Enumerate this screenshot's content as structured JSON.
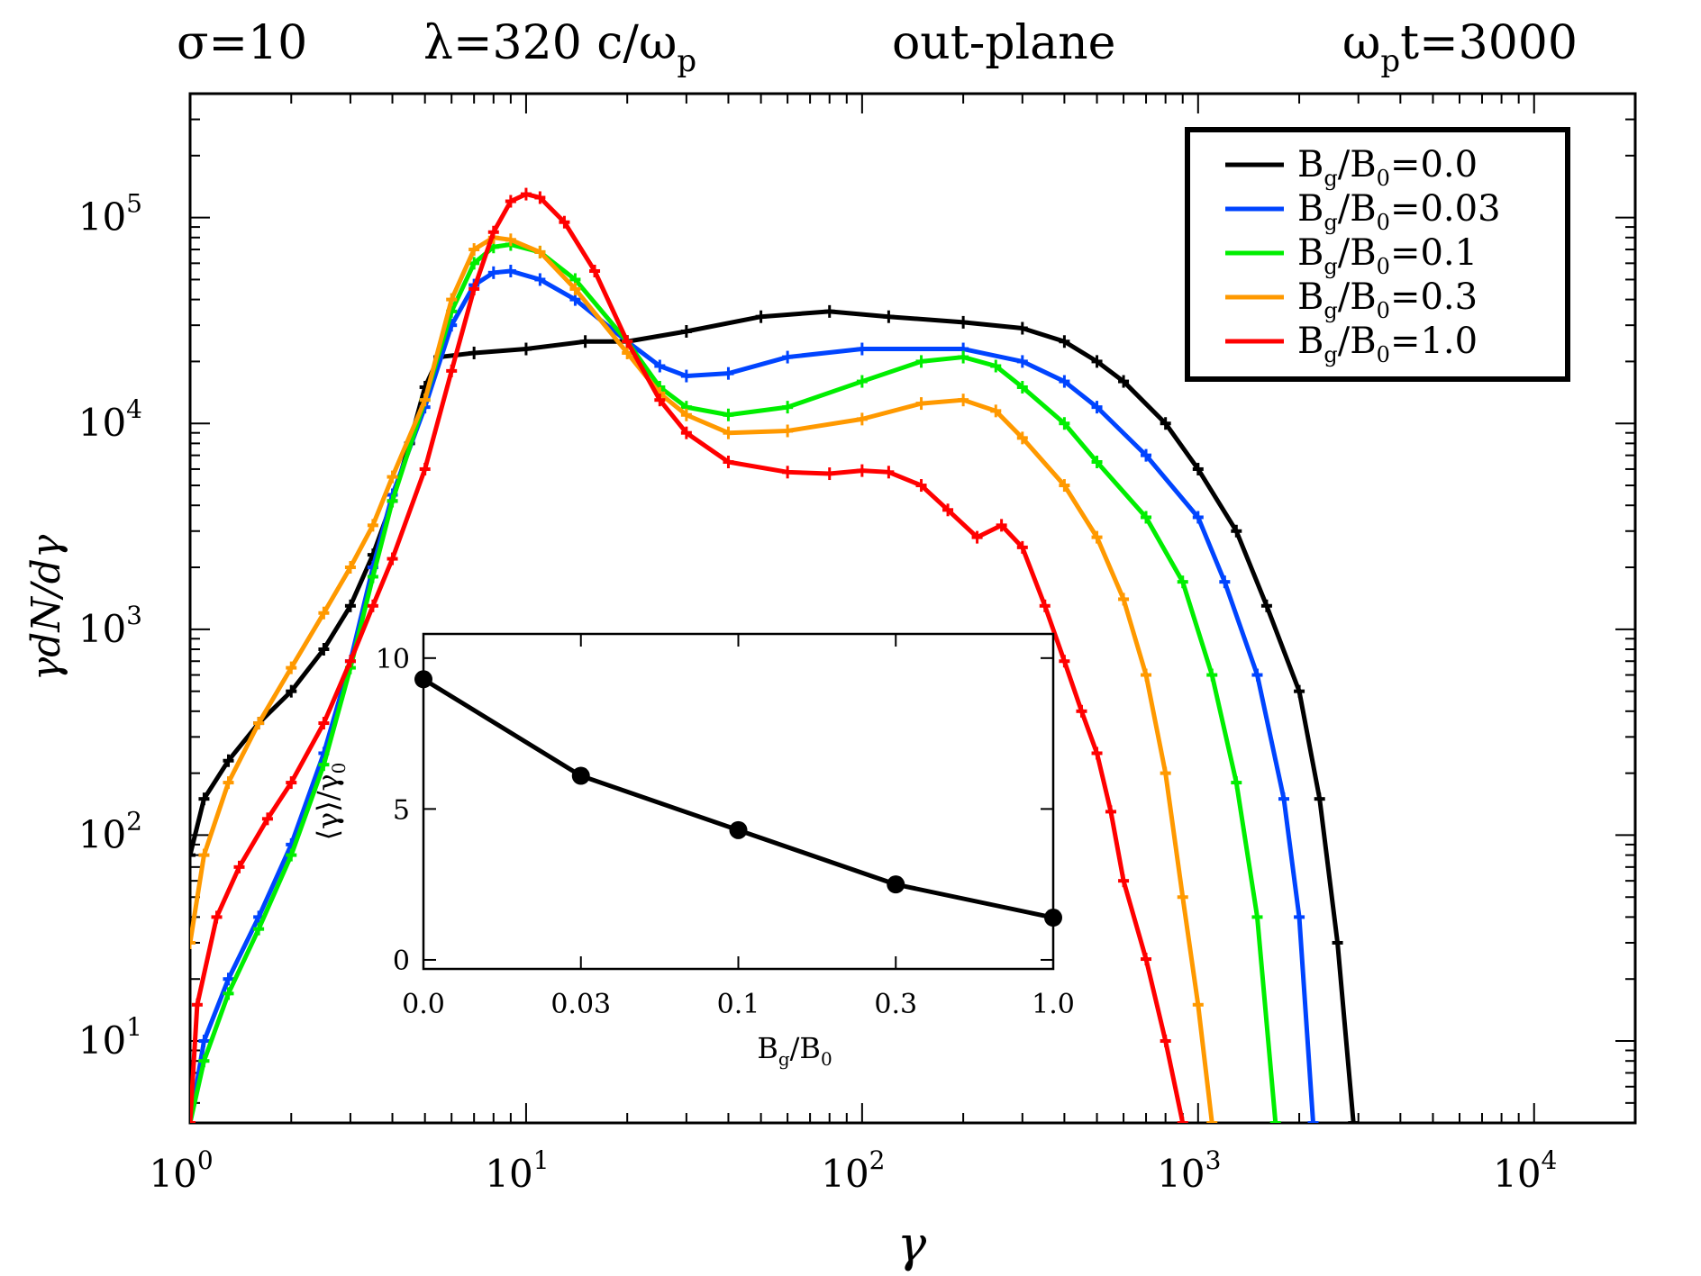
{
  "title": {
    "sigma": "σ=10",
    "lambda": "λ=320 c/ω",
    "lambda_sub": "p",
    "plane": "out-plane",
    "time_pre": "ω",
    "time_sub": "p",
    "time_post": "t=3000"
  },
  "chart_data": [
    {
      "type": "line",
      "x_scale": "log",
      "y_scale": "log",
      "xlabel": "γ",
      "ylabel": "γdN/dγ",
      "xlim": [
        1,
        20000
      ],
      "ylim": [
        4,
        400000
      ],
      "x_ticks": [
        {
          "base": "10",
          "exp": "0",
          "value": 1
        },
        {
          "base": "10",
          "exp": "1",
          "value": 10
        },
        {
          "base": "10",
          "exp": "2",
          "value": 100
        },
        {
          "base": "10",
          "exp": "3",
          "value": 1000
        },
        {
          "base": "10",
          "exp": "4",
          "value": 10000
        }
      ],
      "y_ticks": [
        {
          "base": "10",
          "exp": "1",
          "value": 10
        },
        {
          "base": "10",
          "exp": "2",
          "value": 100
        },
        {
          "base": "10",
          "exp": "3",
          "value": 1000
        },
        {
          "base": "10",
          "exp": "4",
          "value": 10000
        },
        {
          "base": "10",
          "exp": "5",
          "value": 100000
        }
      ],
      "legend_position": "top-right",
      "series": [
        {
          "name": "Bg/B0=0.0",
          "label_main": "B",
          "label_sub": "g",
          "label_mid": "/B",
          "label_sub2": "0",
          "label_value": "=0.0",
          "color": "#000000",
          "points": [
            [
              1.0,
              80
            ],
            [
              1.1,
              150
            ],
            [
              1.3,
              230
            ],
            [
              1.6,
              350
            ],
            [
              2,
              500
            ],
            [
              2.5,
              800
            ],
            [
              3,
              1300
            ],
            [
              3.5,
              2300
            ],
            [
              4,
              4200
            ],
            [
              4.5,
              8000
            ],
            [
              5,
              15000
            ],
            [
              5.5,
              21000
            ],
            [
              7,
              22000
            ],
            [
              10,
              23000
            ],
            [
              15,
              25000
            ],
            [
              20,
              25000
            ],
            [
              30,
              28000
            ],
            [
              50,
              33000
            ],
            [
              80,
              35000
            ],
            [
              120,
              33000
            ],
            [
              200,
              31000
            ],
            [
              300,
              29000
            ],
            [
              400,
              25000
            ],
            [
              500,
              20000
            ],
            [
              600,
              16000
            ],
            [
              800,
              10000
            ],
            [
              1000,
              6000
            ],
            [
              1300,
              3000
            ],
            [
              1600,
              1300
            ],
            [
              2000,
              500
            ],
            [
              2300,
              150
            ],
            [
              2600,
              30
            ],
            [
              2900,
              4
            ]
          ]
        },
        {
          "name": "Bg/B0=0.03",
          "label_main": "B",
          "label_sub": "g",
          "label_mid": "/B",
          "label_sub2": "0",
          "label_value": "=0.03",
          "color": "#0044ff",
          "points": [
            [
              1.0,
              4
            ],
            [
              1.1,
              10
            ],
            [
              1.3,
              20
            ],
            [
              1.6,
              40
            ],
            [
              2,
              90
            ],
            [
              2.5,
              250
            ],
            [
              3,
              700
            ],
            [
              3.5,
              2000
            ],
            [
              4,
              4500
            ],
            [
              5,
              12000
            ],
            [
              6,
              30000
            ],
            [
              7,
              47000
            ],
            [
              8,
              54000
            ],
            [
              9,
              55000
            ],
            [
              11,
              50000
            ],
            [
              14,
              40000
            ],
            [
              20,
              25000
            ],
            [
              25,
              19000
            ],
            [
              30,
              17000
            ],
            [
              40,
              17500
            ],
            [
              60,
              21000
            ],
            [
              100,
              23000
            ],
            [
              200,
              23000
            ],
            [
              300,
              20000
            ],
            [
              400,
              16000
            ],
            [
              500,
              12000
            ],
            [
              700,
              7000
            ],
            [
              1000,
              3500
            ],
            [
              1200,
              1700
            ],
            [
              1500,
              600
            ],
            [
              1800,
              150
            ],
            [
              2000,
              40
            ],
            [
              2200,
              4
            ]
          ]
        },
        {
          "name": "Bg/B0=0.1",
          "label_main": "B",
          "label_sub": "g",
          "label_mid": "/B",
          "label_sub2": "0",
          "label_value": "=0.1",
          "color": "#00ee00",
          "points": [
            [
              1.0,
              4
            ],
            [
              1.1,
              8
            ],
            [
              1.3,
              17
            ],
            [
              1.6,
              35
            ],
            [
              2,
              80
            ],
            [
              2.5,
              220
            ],
            [
              3,
              650
            ],
            [
              3.5,
              1800
            ],
            [
              4,
              4200
            ],
            [
              5,
              13000
            ],
            [
              6,
              35000
            ],
            [
              7,
              60000
            ],
            [
              8,
              72000
            ],
            [
              9,
              74000
            ],
            [
              11,
              68000
            ],
            [
              14,
              50000
            ],
            [
              20,
              25000
            ],
            [
              25,
              15000
            ],
            [
              30,
              12000
            ],
            [
              40,
              11000
            ],
            [
              60,
              12000
            ],
            [
              100,
              16000
            ],
            [
              150,
              20000
            ],
            [
              200,
              21000
            ],
            [
              250,
              19000
            ],
            [
              300,
              15000
            ],
            [
              400,
              10000
            ],
            [
              500,
              6500
            ],
            [
              700,
              3500
            ],
            [
              900,
              1700
            ],
            [
              1100,
              600
            ],
            [
              1300,
              180
            ],
            [
              1500,
              40
            ],
            [
              1700,
              4
            ]
          ]
        },
        {
          "name": "Bg/B0=0.3",
          "label_main": "B",
          "label_sub": "g",
          "label_mid": "/B",
          "label_sub2": "0",
          "label_value": "=0.3",
          "color": "#ff9900",
          "points": [
            [
              1.0,
              30
            ],
            [
              1.1,
              80
            ],
            [
              1.3,
              180
            ],
            [
              1.6,
              350
            ],
            [
              2,
              650
            ],
            [
              2.5,
              1200
            ],
            [
              3,
              2000
            ],
            [
              3.5,
              3200
            ],
            [
              4,
              5500
            ],
            [
              5,
              13000
            ],
            [
              6,
              40000
            ],
            [
              7,
              70000
            ],
            [
              8,
              80000
            ],
            [
              9,
              78000
            ],
            [
              11,
              68000
            ],
            [
              14,
              45000
            ],
            [
              20,
              22000
            ],
            [
              25,
              14000
            ],
            [
              30,
              11000
            ],
            [
              40,
              9000
            ],
            [
              60,
              9200
            ],
            [
              100,
              10500
            ],
            [
              150,
              12500
            ],
            [
              200,
              13000
            ],
            [
              250,
              11500
            ],
            [
              300,
              8500
            ],
            [
              400,
              5000
            ],
            [
              500,
              2800
            ],
            [
              600,
              1400
            ],
            [
              700,
              600
            ],
            [
              800,
              200
            ],
            [
              900,
              50
            ],
            [
              1000,
              15
            ],
            [
              1100,
              4
            ]
          ]
        },
        {
          "name": "Bg/B0=1.0",
          "label_main": "B",
          "label_sub": "g",
          "label_mid": "/B",
          "label_sub2": "0",
          "label_value": "=1.0",
          "color": "#ff0000",
          "points": [
            [
              1.0,
              4
            ],
            [
              1.05,
              15
            ],
            [
              1.2,
              40
            ],
            [
              1.4,
              70
            ],
            [
              1.7,
              120
            ],
            [
              2,
              180
            ],
            [
              2.5,
              350
            ],
            [
              3,
              700
            ],
            [
              3.5,
              1300
            ],
            [
              4,
              2200
            ],
            [
              5,
              6000
            ],
            [
              6,
              18000
            ],
            [
              7,
              45000
            ],
            [
              8,
              85000
            ],
            [
              9,
              120000
            ],
            [
              10,
              130000
            ],
            [
              11,
              125000
            ],
            [
              13,
              95000
            ],
            [
              16,
              55000
            ],
            [
              20,
              25000
            ],
            [
              25,
              13000
            ],
            [
              30,
              9000
            ],
            [
              40,
              6500
            ],
            [
              60,
              5800
            ],
            [
              80,
              5700
            ],
            [
              100,
              5900
            ],
            [
              120,
              5800
            ],
            [
              150,
              5000
            ],
            [
              180,
              3800
            ],
            [
              220,
              2800
            ],
            [
              260,
              3200
            ],
            [
              300,
              2500
            ],
            [
              350,
              1300
            ],
            [
              400,
              700
            ],
            [
              450,
              400
            ],
            [
              500,
              250
            ],
            [
              550,
              130
            ],
            [
              600,
              60
            ],
            [
              700,
              25
            ],
            [
              800,
              10
            ],
            [
              900,
              4
            ]
          ]
        }
      ]
    },
    {
      "type": "line",
      "name": "inset",
      "xlabel_main": "B",
      "xlabel_sub": "g",
      "xlabel_mid": "/B",
      "xlabel_sub2": "0",
      "ylabel": "⟨γ⟩/γ",
      "ylabel_sub": "0",
      "categories": [
        "0.0",
        "0.03",
        "0.1",
        "0.3",
        "1.0"
      ],
      "y_tick_labels": [
        "0",
        "5",
        "10"
      ],
      "y_tick_values": [
        0,
        5,
        10
      ],
      "ylim": [
        -0.3,
        10.8
      ],
      "values": [
        9.3,
        6.1,
        4.3,
        2.5,
        1.4
      ],
      "color": "#000000"
    }
  ]
}
